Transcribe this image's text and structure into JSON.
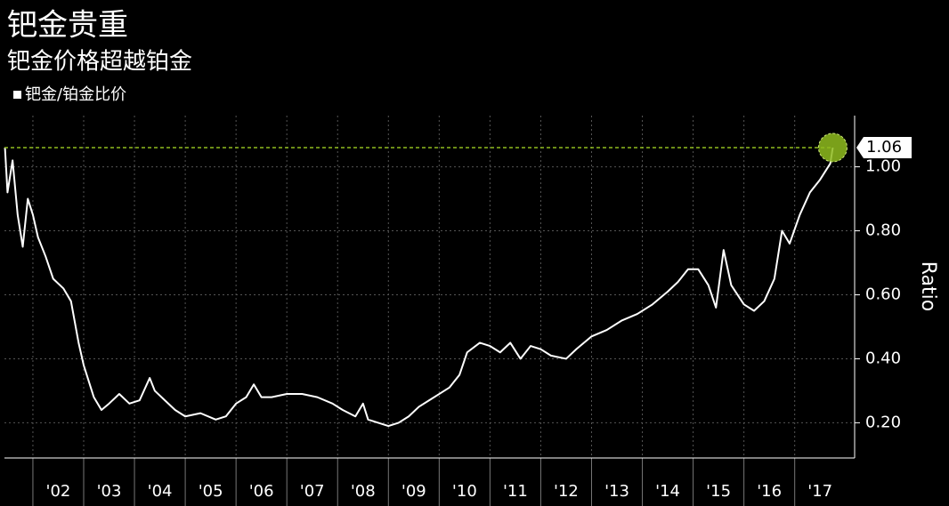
{
  "chart_data": {
    "type": "line",
    "title": "钯金贵重",
    "subtitle": "钯金价格超越铂金",
    "y_label": "Ratio",
    "series": [
      {
        "name": "钯金/铂金比价",
        "color": "#ffffff",
        "values": [
          1.06,
          0.92,
          1.02,
          0.85,
          0.75,
          0.9,
          0.85,
          0.78,
          0.72,
          0.65,
          0.62,
          0.58,
          0.45,
          0.38,
          0.28,
          0.24,
          0.26,
          0.29,
          0.26,
          0.27,
          0.34,
          0.3,
          0.27,
          0.24,
          0.22,
          0.23,
          0.21,
          0.22,
          0.26,
          0.28,
          0.32,
          0.28,
          0.28,
          0.29,
          0.29,
          0.28,
          0.26,
          0.24,
          0.22,
          0.26,
          0.21,
          0.2,
          0.19,
          0.2,
          0.22,
          0.25,
          0.27,
          0.29,
          0.31,
          0.35,
          0.42,
          0.45,
          0.44,
          0.42,
          0.45,
          0.4,
          0.44,
          0.43,
          0.41,
          0.4,
          0.43,
          0.47,
          0.49,
          0.52,
          0.54,
          0.57,
          0.61,
          0.64,
          0.68,
          0.68,
          0.63,
          0.56,
          0.74,
          0.63,
          0.57,
          0.55,
          0.58,
          0.65,
          0.8,
          0.76,
          0.85,
          0.92,
          0.96,
          1.01,
          1.06
        ]
      }
    ],
    "x": [
      2001.45,
      2001.5,
      2001.6,
      2001.7,
      2001.8,
      2001.9,
      2002.0,
      2002.1,
      2002.25,
      2002.4,
      2002.6,
      2002.75,
      2002.9,
      2003.0,
      2003.2,
      2003.35,
      2003.5,
      2003.7,
      2003.9,
      2004.1,
      2004.3,
      2004.4,
      2004.6,
      2004.8,
      2005.0,
      2005.3,
      2005.6,
      2005.8,
      2006.0,
      2006.2,
      2006.35,
      2006.5,
      2006.7,
      2007.0,
      2007.3,
      2007.6,
      2007.9,
      2008.1,
      2008.35,
      2008.5,
      2008.6,
      2008.8,
      2009.0,
      2009.2,
      2009.4,
      2009.6,
      2009.8,
      2010.0,
      2010.2,
      2010.4,
      2010.55,
      2010.8,
      2011.0,
      2011.2,
      2011.4,
      2011.6,
      2011.8,
      2012.0,
      2012.2,
      2012.5,
      2012.7,
      2013.0,
      2013.3,
      2013.6,
      2013.9,
      2014.2,
      2014.5,
      2014.7,
      2014.9,
      2015.1,
      2015.3,
      2015.45,
      2015.6,
      2015.75,
      2016.0,
      2016.2,
      2016.4,
      2016.6,
      2016.75,
      2016.9,
      2017.1,
      2017.3,
      2017.5,
      2017.7,
      2017.75
    ],
    "xlim": [
      2001.44,
      2018.18
    ],
    "xticks": [
      {
        "value": 2002,
        "label": "'02"
      },
      {
        "value": 2003,
        "label": "'03"
      },
      {
        "value": 2004,
        "label": "'04"
      },
      {
        "value": 2005,
        "label": "'05"
      },
      {
        "value": 2006,
        "label": "'06"
      },
      {
        "value": 2007,
        "label": "'07"
      },
      {
        "value": 2008,
        "label": "'08"
      },
      {
        "value": 2009,
        "label": "'09"
      },
      {
        "value": 2010,
        "label": "'10"
      },
      {
        "value": 2011,
        "label": "'11"
      },
      {
        "value": 2012,
        "label": "'12"
      },
      {
        "value": 2013,
        "label": "'13"
      },
      {
        "value": 2014,
        "label": "'14"
      },
      {
        "value": 2015,
        "label": "'15"
      },
      {
        "value": 2016,
        "label": "'16"
      },
      {
        "value": 2017,
        "label": "'17"
      }
    ],
    "ylim": [
      0.09,
      1.16
    ],
    "yticks": [
      {
        "value": 0.2,
        "label": "0.20"
      },
      {
        "value": 0.4,
        "label": "0.40"
      },
      {
        "value": 0.6,
        "label": "0.60"
      },
      {
        "value": 0.8,
        "label": "0.80"
      },
      {
        "value": 1.0,
        "label": "1.00"
      }
    ],
    "highlight_color": "#8fbc1f",
    "grid": true
  }
}
